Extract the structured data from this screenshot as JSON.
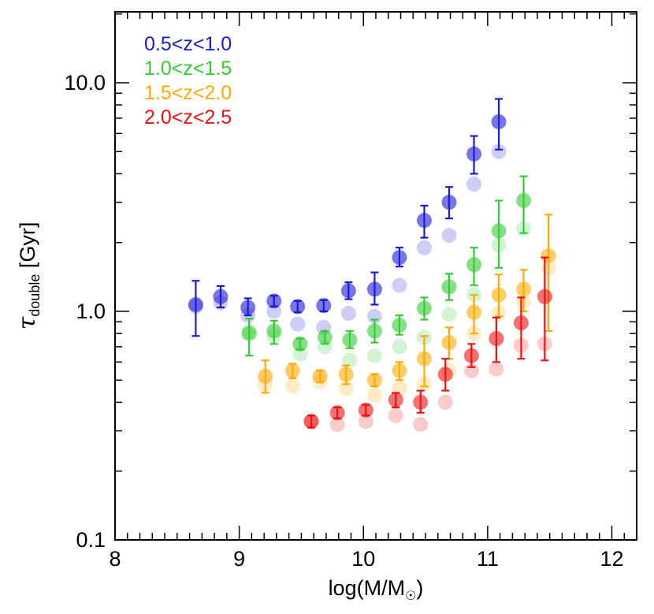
{
  "chart_data": {
    "type": "scatter",
    "title": "",
    "xlabel": "log(M/M",
    "xlabel_symbol": "☉",
    "xlabel_close": ")",
    "ylabel_symbol": "τ",
    "ylabel_subscript": "double",
    "ylabel_unit": " [Gyr]",
    "xlim": [
      8,
      12.2
    ],
    "ylim": [
      0.1,
      20
    ],
    "yscale": "log",
    "x_ticks": [
      "8",
      "9",
      "10",
      "11",
      "12"
    ],
    "y_ticks": [
      "0.1",
      "1.0",
      "10.0"
    ],
    "legend_position": "top-left",
    "series": [
      {
        "name": "0.5<z<1.0",
        "color": "#1a1ad6",
        "x": [
          8.65,
          8.85,
          9.07,
          9.28,
          9.47,
          9.68,
          9.88,
          10.09,
          10.29,
          10.49,
          10.69,
          10.89,
          11.09
        ],
        "y": [
          1.07,
          1.16,
          1.04,
          1.11,
          1.05,
          1.06,
          1.23,
          1.25,
          1.72,
          2.5,
          3.0,
          4.88,
          6.75
        ],
        "y_err_low": [
          0.78,
          1.04,
          0.96,
          1.05,
          0.99,
          1.0,
          1.13,
          1.07,
          1.57,
          2.1,
          2.55,
          4.0,
          5.1
        ],
        "y_err_high": [
          1.36,
          1.29,
          1.14,
          1.17,
          1.11,
          1.12,
          1.34,
          1.48,
          1.9,
          2.9,
          3.5,
          5.85,
          8.5
        ],
        "faded_x": [
          8.65,
          8.85,
          9.07,
          9.28,
          9.47,
          9.68,
          9.88,
          10.09,
          10.29,
          10.49,
          10.69,
          10.89,
          11.09
        ],
        "faded_y": [
          1.05,
          1.09,
          0.96,
          1.0,
          0.88,
          0.85,
          0.98,
          0.95,
          1.3,
          1.9,
          2.15,
          3.6,
          5.0
        ]
      },
      {
        "name": "1.0<z<1.5",
        "color": "#33cc33",
        "x": [
          9.08,
          9.28,
          9.49,
          9.69,
          9.89,
          10.09,
          10.29,
          10.49,
          10.69,
          10.89,
          11.09,
          11.29
        ],
        "y": [
          0.8,
          0.82,
          0.72,
          0.77,
          0.75,
          0.82,
          0.87,
          1.03,
          1.28,
          1.6,
          2.25,
          3.05
        ],
        "y_err_low": [
          0.64,
          0.72,
          0.68,
          0.72,
          0.69,
          0.73,
          0.79,
          0.92,
          1.12,
          1.3,
          1.55,
          2.2
        ],
        "y_err_high": [
          0.93,
          0.91,
          0.76,
          0.82,
          0.82,
          0.92,
          0.96,
          1.15,
          1.46,
          1.9,
          3.05,
          3.9
        ],
        "faded_x": [
          9.08,
          9.28,
          9.49,
          9.69,
          9.89,
          10.09,
          10.29,
          10.49,
          10.69,
          10.89,
          11.09,
          11.29
        ],
        "faded_y": [
          0.82,
          0.78,
          0.65,
          0.7,
          0.61,
          0.64,
          0.7,
          0.77,
          0.97,
          1.18,
          1.95,
          2.3
        ]
      },
      {
        "name": "1.5<z<2.0",
        "color": "#ffaa00",
        "x": [
          9.21,
          9.43,
          9.65,
          9.86,
          10.09,
          10.29,
          10.49,
          10.69,
          10.89,
          11.09,
          11.29,
          11.49
        ],
        "y": [
          0.52,
          0.55,
          0.52,
          0.53,
          0.5,
          0.55,
          0.62,
          0.73,
          0.99,
          1.18,
          1.25,
          1.75
        ],
        "y_err_low": [
          0.44,
          0.51,
          0.49,
          0.48,
          0.47,
          0.5,
          0.47,
          0.62,
          0.8,
          0.95,
          1.0,
          0.82
        ],
        "y_err_high": [
          0.61,
          0.59,
          0.55,
          0.58,
          0.53,
          0.6,
          0.78,
          0.85,
          1.18,
          1.45,
          1.52,
          2.65
        ],
        "faded_x": [
          9.21,
          9.43,
          9.65,
          9.86,
          10.09,
          10.29,
          10.49,
          10.69,
          10.89,
          11.09,
          11.29,
          11.49
        ],
        "faded_y": [
          0.48,
          0.47,
          0.49,
          0.46,
          0.43,
          0.46,
          0.48,
          0.55,
          0.8,
          0.98,
          1.1,
          1.55
        ]
      },
      {
        "name": "2.0<z<2.5",
        "color": "#ee1111",
        "x": [
          9.58,
          9.79,
          10.02,
          10.26,
          10.46,
          10.66,
          10.87,
          11.07,
          11.27,
          11.46
        ],
        "y": [
          0.33,
          0.36,
          0.37,
          0.41,
          0.4,
          0.53,
          0.64,
          0.76,
          0.89,
          1.16
        ],
        "y_err_low": [
          0.31,
          0.34,
          0.35,
          0.38,
          0.36,
          0.45,
          0.57,
          0.6,
          0.62,
          0.61
        ],
        "y_err_high": [
          0.35,
          0.38,
          0.39,
          0.44,
          0.45,
          0.62,
          0.72,
          0.94,
          1.15,
          1.72
        ],
        "faded_x": [
          9.58,
          9.79,
          10.02,
          10.26,
          10.46,
          10.66,
          10.87,
          11.07,
          11.27,
          11.46
        ],
        "faded_y": [
          0.33,
          0.32,
          0.33,
          0.35,
          0.32,
          0.4,
          0.55,
          0.56,
          0.71,
          0.72
        ]
      }
    ]
  }
}
